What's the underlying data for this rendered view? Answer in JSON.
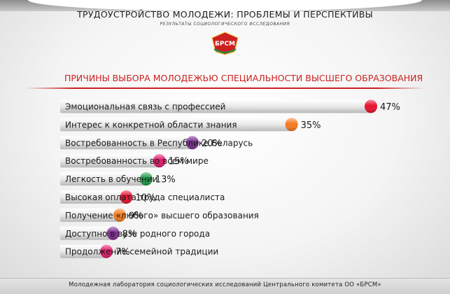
{
  "header": {
    "title": "ТРУДОУСТРОЙСТВО МОЛОДЕЖИ: ПРОБЛЕМЫ И ПЕРСПЕКТИВЫ",
    "subtitle": "РЕЗУЛЬТАТЫ СОЦИОЛОГИЧЕСКОГО ИССЛЕДОВАНИЯ",
    "logo_text": "БРСМ"
  },
  "footer": {
    "text": "Молодежная лаборатория социологических исследований Центрального комитета ОО «БРСМ»"
  },
  "chart_data": {
    "type": "bar",
    "title": "ПРИЧИНЫ ВЫБОРА МОЛОДЕЖЬЮ СПЕЦИАЛЬНОСТИ ВЫСШЕГО ОБРАЗОВАНИЯ",
    "categories": [
      "Эмоциональная связь с профессией",
      "Интерес к конкретной области знания",
      "Востребованность в Республике Беларусь",
      "Востребованность во всем мире",
      "Легкость в обучении",
      "Высокая оплата труда специалиста",
      "Получение «любого» высшего образования",
      "Доступно в вузе родного города",
      "Продолжение семейной традиции"
    ],
    "values": [
      47,
      35,
      20,
      15,
      13,
      10,
      9,
      8,
      7
    ],
    "value_labels": [
      "47%",
      "35%",
      "20%",
      "15%",
      "13%",
      "10%",
      "9%",
      "8%",
      "7%"
    ],
    "colors": [
      "#e8102c",
      "#f47a1e",
      "#7b2a8e",
      "#e0196b",
      "#1f9a4a",
      "#e8102c",
      "#f47a1e",
      "#7b2a8e",
      "#e0196b"
    ],
    "unit": "%",
    "grid": false,
    "legend": "none"
  }
}
